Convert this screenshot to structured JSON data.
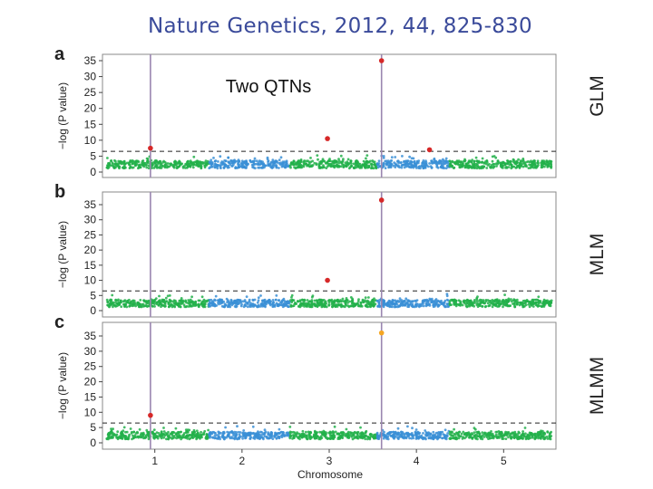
{
  "title": "Nature Genetics, 2012, 44, 825-830",
  "annotation": "Two QTNs",
  "colors": {
    "green": "#22b04a",
    "blue": "#3a8fd6",
    "red": "#d62828",
    "orange": "#f5a623",
    "qtn_line": "#9a86b0",
    "title": "#3a4a9a"
  },
  "chart_data": [
    {
      "type": "scatter",
      "panel": "a",
      "method": "GLM",
      "ylabel": "−log (P value)",
      "ylim": [
        0,
        37
      ],
      "yticks": [
        0,
        5,
        10,
        15,
        20,
        25,
        30,
        35
      ],
      "xlim": [
        0.4,
        5.6
      ],
      "threshold": 6.5,
      "qtn_positions": [
        0.95,
        3.6
      ],
      "highlighted_points": [
        {
          "x": 0.95,
          "y": 7.5,
          "color": "red"
        },
        {
          "x": 2.98,
          "y": 10.5,
          "color": "red"
        },
        {
          "x": 3.6,
          "y": 35,
          "color": "red"
        },
        {
          "x": 4.15,
          "y": 7.0,
          "color": "red"
        }
      ]
    },
    {
      "type": "scatter",
      "panel": "b",
      "method": "MLM",
      "ylabel": "−log (P value)",
      "ylim": [
        0,
        37
      ],
      "yticks": [
        0,
        5,
        10,
        15,
        20,
        25,
        30,
        35
      ],
      "xlim": [
        0.4,
        5.6
      ],
      "threshold": 6.5,
      "qtn_positions": [
        0.95,
        3.6
      ],
      "highlighted_points": [
        {
          "x": 2.98,
          "y": 10,
          "color": "red"
        },
        {
          "x": 3.6,
          "y": 36.5,
          "color": "red"
        }
      ]
    },
    {
      "type": "scatter",
      "panel": "c",
      "method": "MLMM",
      "ylabel": "−log (P value)",
      "xlabel": "Chromosome",
      "ylim": [
        0,
        37
      ],
      "yticks": [
        0,
        5,
        10,
        15,
        20,
        25,
        30,
        35
      ],
      "xlim": [
        0.4,
        5.6
      ],
      "xticks": [
        1,
        2,
        3,
        4,
        5
      ],
      "threshold": 6.5,
      "qtn_positions": [
        0.95,
        3.6
      ],
      "highlighted_points": [
        {
          "x": 0.95,
          "y": 9,
          "color": "red"
        },
        {
          "x": 3.6,
          "y": 36,
          "color": "orange"
        }
      ],
      "chromosomes": [
        {
          "label": "1",
          "start": 0.45,
          "end": 1.62,
          "color": "green"
        },
        {
          "label": "2",
          "start": 1.62,
          "end": 2.55,
          "color": "blue"
        },
        {
          "label": "3",
          "start": 2.55,
          "end": 3.55,
          "color": "green"
        },
        {
          "label": "4",
          "start": 3.55,
          "end": 4.38,
          "color": "blue"
        },
        {
          "label": "5",
          "start": 4.38,
          "end": 5.55,
          "color": "green"
        }
      ]
    }
  ]
}
